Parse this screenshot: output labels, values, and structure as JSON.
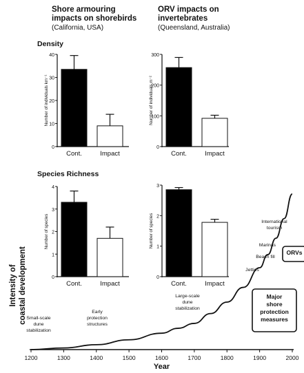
{
  "headers": {
    "left_title_1": "Shore armouring",
    "left_title_2": "impacts on shorebirds",
    "left_sub": "(California, USA)",
    "right_title_1": "ORV impacts on",
    "right_title_2": "invertebrates",
    "right_sub": "(Queensland, Australia)",
    "density": "Density",
    "richness": "Species Richness"
  },
  "chart_data": [
    {
      "type": "bar",
      "panel": "shorebird-density",
      "categories": [
        "Cont.",
        "Impact"
      ],
      "values": [
        33.5,
        9
      ],
      "errors": [
        6,
        5
      ],
      "fills": [
        "#000000",
        "#ffffff"
      ],
      "ylabel": "Number of individuals km⁻¹",
      "ylim": [
        0,
        40
      ],
      "yticks": [
        0,
        10,
        20,
        30,
        40
      ]
    },
    {
      "type": "bar",
      "panel": "invertebrate-density",
      "categories": [
        "Cont.",
        "Impact"
      ],
      "values": [
        257,
        92
      ],
      "errors": [
        33,
        10
      ],
      "fills": [
        "#000000",
        "#ffffff"
      ],
      "ylabel": "Number of individuals m⁻²",
      "ylim": [
        0,
        300
      ],
      "yticks": [
        0,
        100,
        200,
        300
      ]
    },
    {
      "type": "bar",
      "panel": "shorebird-richness",
      "categories": [
        "Cont.",
        "Impact"
      ],
      "values": [
        3.3,
        1.7
      ],
      "errors": [
        0.5,
        0.5
      ],
      "fills": [
        "#000000",
        "#ffffff"
      ],
      "ylabel": "Number of species",
      "ylim": [
        0,
        4
      ],
      "yticks": [
        0,
        1,
        2,
        3,
        4
      ]
    },
    {
      "type": "bar",
      "panel": "invertebrate-richness",
      "categories": [
        "Cont.",
        "Impact"
      ],
      "values": [
        2.85,
        1.78
      ],
      "errors": [
        0.07,
        0.1
      ],
      "fills": [
        "#000000",
        "#ffffff"
      ],
      "ylabel": "Number of species",
      "ylim": [
        0,
        3
      ],
      "yticks": [
        0,
        1,
        2,
        3
      ]
    },
    {
      "type": "line",
      "panel": "coastal-development",
      "xlabel": "Year",
      "ylabel": "Intensity of coastal development",
      "xlim": [
        1200,
        2000
      ],
      "xticks": [
        1200,
        1300,
        1400,
        1500,
        1600,
        1700,
        1800,
        1900,
        2000
      ],
      "x": [
        1200,
        1300,
        1400,
        1500,
        1600,
        1650,
        1700,
        1750,
        1800,
        1850,
        1900,
        1925,
        1950,
        1975,
        2000
      ],
      "y": [
        0.0,
        0.01,
        0.03,
        0.06,
        0.1,
        0.13,
        0.16,
        0.22,
        0.29,
        0.38,
        0.5,
        0.58,
        0.68,
        0.8,
        0.95
      ],
      "annotations": [
        {
          "text": [
            "Small-scale",
            "dune",
            "stabilization"
          ]
        },
        {
          "text": [
            "Early",
            "protection",
            "structures"
          ]
        },
        {
          "text": [
            "Large-scale",
            "dune",
            "stabilization"
          ]
        },
        {
          "text": [
            "International",
            "tourism"
          ]
        },
        {
          "text": [
            "Marinas"
          ]
        },
        {
          "text": [
            "Beach fill"
          ]
        },
        {
          "text": [
            "Jetties"
          ]
        },
        {
          "text": [
            "ORVs"
          ],
          "boxed": true
        },
        {
          "text": [
            "Major",
            "shore",
            "protection",
            "measures"
          ],
          "boxed": true
        }
      ]
    }
  ]
}
